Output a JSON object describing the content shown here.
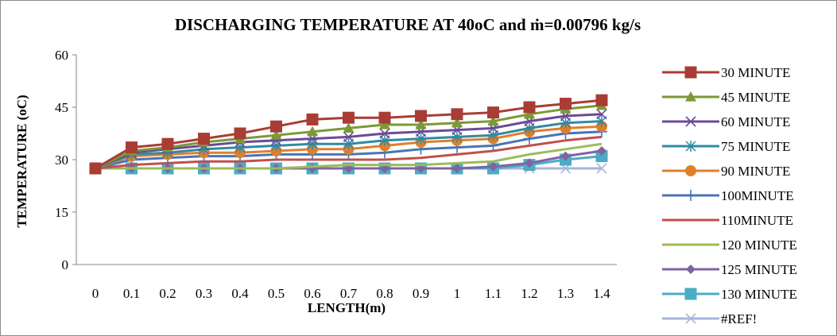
{
  "chart_data": {
    "type": "line",
    "title": "DISCHARGING TEMPERATURE  AT 40oC and ṁ=0.00796  kg/s",
    "xlabel": "LENGTH(m)",
    "ylabel": "TEMPERATURE (oC)",
    "categories": [
      "0",
      "0.1",
      "0.2",
      "0.3",
      "0.4",
      "0.5",
      "0.6",
      "0.7",
      "0.8",
      "0.9",
      "1",
      "1.1",
      "1.2",
      "1.3",
      "1.4"
    ],
    "ylim": [
      0,
      60
    ],
    "yticks": [
      "0",
      "15",
      "30",
      "45",
      "60"
    ],
    "grid": false,
    "legend_position": "right",
    "series": [
      {
        "name": "30 MINUTE",
        "color": "#a93d35",
        "marker": "square",
        "values": [
          27.5,
          33.5,
          34.5,
          36,
          37.5,
          39.5,
          41.5,
          42,
          42,
          42.5,
          43,
          43.5,
          45,
          46,
          47
        ]
      },
      {
        "name": "45 MINUTE",
        "color": "#7b9a35",
        "marker": "triangle",
        "values": [
          27.5,
          32.5,
          33.5,
          35,
          36,
          37,
          38,
          39,
          40,
          40,
          40.5,
          41,
          43,
          44.5,
          45.5
        ]
      },
      {
        "name": "60 MINUTE",
        "color": "#6a4a98",
        "marker": "x",
        "values": [
          27.5,
          32,
          33,
          34,
          35,
          35.5,
          36,
          36.5,
          37.5,
          38,
          38.5,
          39,
          41,
          42.5,
          43
        ]
      },
      {
        "name": "75 MINUTE",
        "color": "#2f8aa3",
        "marker": "asterisk",
        "values": [
          27.5,
          31.5,
          32,
          33,
          33.5,
          34,
          34.5,
          34.5,
          35.5,
          36,
          36.5,
          37,
          39,
          40.5,
          41
        ]
      },
      {
        "name": "90 MINUTE",
        "color": "#e07f2b",
        "marker": "circle",
        "values": [
          27.5,
          31,
          31.5,
          32,
          32,
          32.5,
          33,
          33,
          34,
          35,
          35.5,
          36,
          38,
          39,
          39.5
        ]
      },
      {
        "name": "100MINUTE",
        "color": "#4a74b4",
        "marker": "plus",
        "values": [
          27.5,
          30,
          30.5,
          31,
          31,
          31.5,
          31.5,
          31.5,
          32,
          33,
          33.5,
          34,
          36,
          37.5,
          38
        ]
      },
      {
        "name": "110MINUTE",
        "color": "#c0504d",
        "marker": "none",
        "values": [
          27.5,
          28.5,
          29,
          29.5,
          29.5,
          30,
          30,
          30,
          30,
          30.5,
          31.5,
          32.5,
          34,
          35.5,
          36.5
        ]
      },
      {
        "name": "120 MINUTE",
        "color": "#9bbb59",
        "marker": "none",
        "values": [
          27.5,
          27.5,
          27.5,
          27.5,
          27.5,
          27.5,
          28,
          28.5,
          28.5,
          28.5,
          29,
          29.5,
          31.5,
          33,
          34.5
        ]
      },
      {
        "name": "125 MINUTE",
        "color": "#8064a2",
        "marker": "diamond",
        "values": [
          27.5,
          27.5,
          27.5,
          27.5,
          27.5,
          27.5,
          27.5,
          27.5,
          27.5,
          27.5,
          27.5,
          28,
          29,
          31,
          32.5
        ]
      },
      {
        "name": "130 MINUTE",
        "color": "#4bacc6",
        "marker": "square",
        "values": [
          27.5,
          27.5,
          27.5,
          27.5,
          27.5,
          27.5,
          27.5,
          27.5,
          27.5,
          27.5,
          27.5,
          27.5,
          28.5,
          30,
          31
        ]
      },
      {
        "name": "#REF!",
        "color": "#a6b6dc",
        "marker": "x",
        "values": [
          27.5,
          27.5,
          27.5,
          27.5,
          27.5,
          27.5,
          27.5,
          27.5,
          27.5,
          27.5,
          27.5,
          27.5,
          27.5,
          27.5,
          27.5
        ]
      }
    ]
  }
}
